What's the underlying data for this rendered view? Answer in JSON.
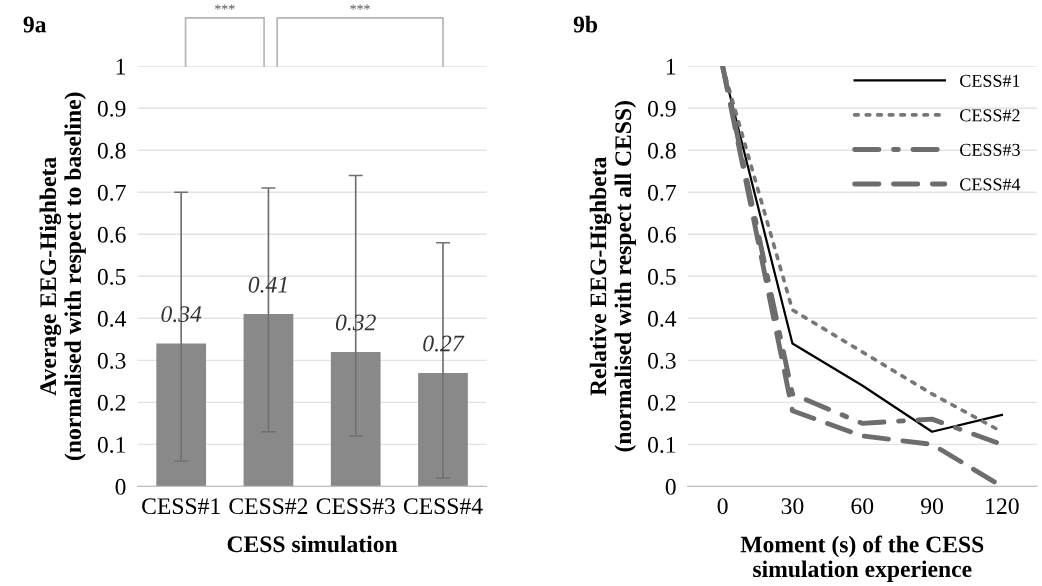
{
  "chart_data": [
    {
      "type": "bar",
      "title": "9a",
      "xlabel": "CESS simulation",
      "ylabel": "Average EEG-Highbeta\n(normalised with respect to baseline)",
      "categories": [
        "CESS#1",
        "CESS#2",
        "CESS#3",
        "CESS#4"
      ],
      "values": [
        0.34,
        0.41,
        0.32,
        0.27
      ],
      "color": "#898989",
      "errors": [
        [
          0.06,
          0.7
        ],
        [
          0.13,
          0.71
        ],
        [
          0.12,
          0.74
        ],
        [
          0.02,
          0.58
        ]
      ],
      "ylim": [
        0,
        1
      ],
      "yticks": [
        0,
        0.1,
        0.2,
        0.3,
        0.4,
        0.5,
        0.6,
        0.7,
        0.8,
        0.9,
        1
      ],
      "grid": "y",
      "data_labels": true,
      "annotations": [
        "***",
        "***"
      ]
    },
    {
      "type": "line",
      "title": "9b",
      "xlabel": "Moment (s) of the CESS\nsimulation experience",
      "ylabel": "Relative EEG-Highbeta\n(normalised with respect all CESS)",
      "x": [
        0,
        30,
        60,
        90,
        120
      ],
      "xlim": [
        -15,
        135
      ],
      "xticks": [
        0,
        30,
        60,
        90,
        120
      ],
      "ylim": [
        0,
        1
      ],
      "yticks": [
        0,
        0.1,
        0.2,
        0.3,
        0.4,
        0.5,
        0.6,
        0.7,
        0.8,
        0.9,
        1
      ],
      "grid": "y",
      "legend": "top right",
      "series": [
        {
          "name": "CESS#1",
          "color": "#000000",
          "line_style": "solid",
          "values": [
            1,
            0.34,
            0.24,
            0.13,
            0.17
          ]
        },
        {
          "name": "CESS#2",
          "color": "#777777",
          "line_style": "dotted",
          "values": [
            1,
            0.42,
            0.32,
            0.22,
            0.13
          ]
        },
        {
          "name": "CESS#3",
          "color": "#6d6d6d",
          "line_style": "dashdot",
          "values": [
            1,
            0.22,
            0.15,
            0.16,
            0.1
          ]
        },
        {
          "name": "CESS#4",
          "color": "#6d6d6d",
          "line_style": "dashed",
          "values": [
            1,
            0.18,
            0.12,
            0.1,
            0
          ]
        }
      ]
    }
  ]
}
